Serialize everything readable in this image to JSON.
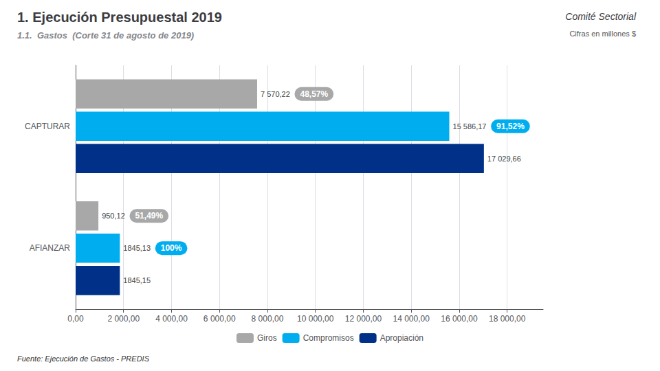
{
  "chart_data": {
    "type": "bar",
    "orientation": "horizontal",
    "title": "1. Ejecución Presupuestal 2019",
    "subtitle": "1.1.  Gastos  (Corte 31 de agosto de 2019)",
    "header": "Comité Sectorial",
    "units_note": "Cifras en millones $",
    "source": "Fuente: Ejecución de Gastos - PREDIS",
    "categories": [
      "CAPTURAR",
      "AFIANZAR"
    ],
    "series": [
      {
        "name": "Giros",
        "color": "#a8a8a8",
        "values": [
          7570.22,
          950.12
        ],
        "value_labels": [
          "7 570,22",
          "950,12"
        ],
        "share_labels": [
          "48,57%",
          "51,49%"
        ]
      },
      {
        "name": "Compromisos",
        "color": "#00aeef",
        "values": [
          15586.17,
          1845.13
        ],
        "value_labels": [
          "15 586,17",
          "1845,13"
        ],
        "share_labels": [
          "91,52%",
          "100%"
        ]
      },
      {
        "name": "Apropiación",
        "color": "#003087",
        "values": [
          17029.66,
          1845.15
        ],
        "value_labels": [
          "17 029,66",
          "1845,15"
        ]
      }
    ],
    "xlim": [
      0,
      19500
    ],
    "xticks": [
      {
        "value": 0,
        "label": "0,00"
      },
      {
        "value": 2000,
        "label": "2 000,00"
      },
      {
        "value": 4000,
        "label": "4 000,00"
      },
      {
        "value": 6000,
        "label": "6 000,00"
      },
      {
        "value": 8000,
        "label": "8 000,00"
      },
      {
        "value": 10000,
        "label": "10 000,00"
      },
      {
        "value": 12000,
        "label": "12 000,00"
      },
      {
        "value": 14000,
        "label": "14 000,00"
      },
      {
        "value": 16000,
        "label": "16 000,00"
      },
      {
        "value": 18000,
        "label": "18 000,00"
      }
    ],
    "grid": true,
    "legend": "bottom",
    "data_labels": true
  }
}
